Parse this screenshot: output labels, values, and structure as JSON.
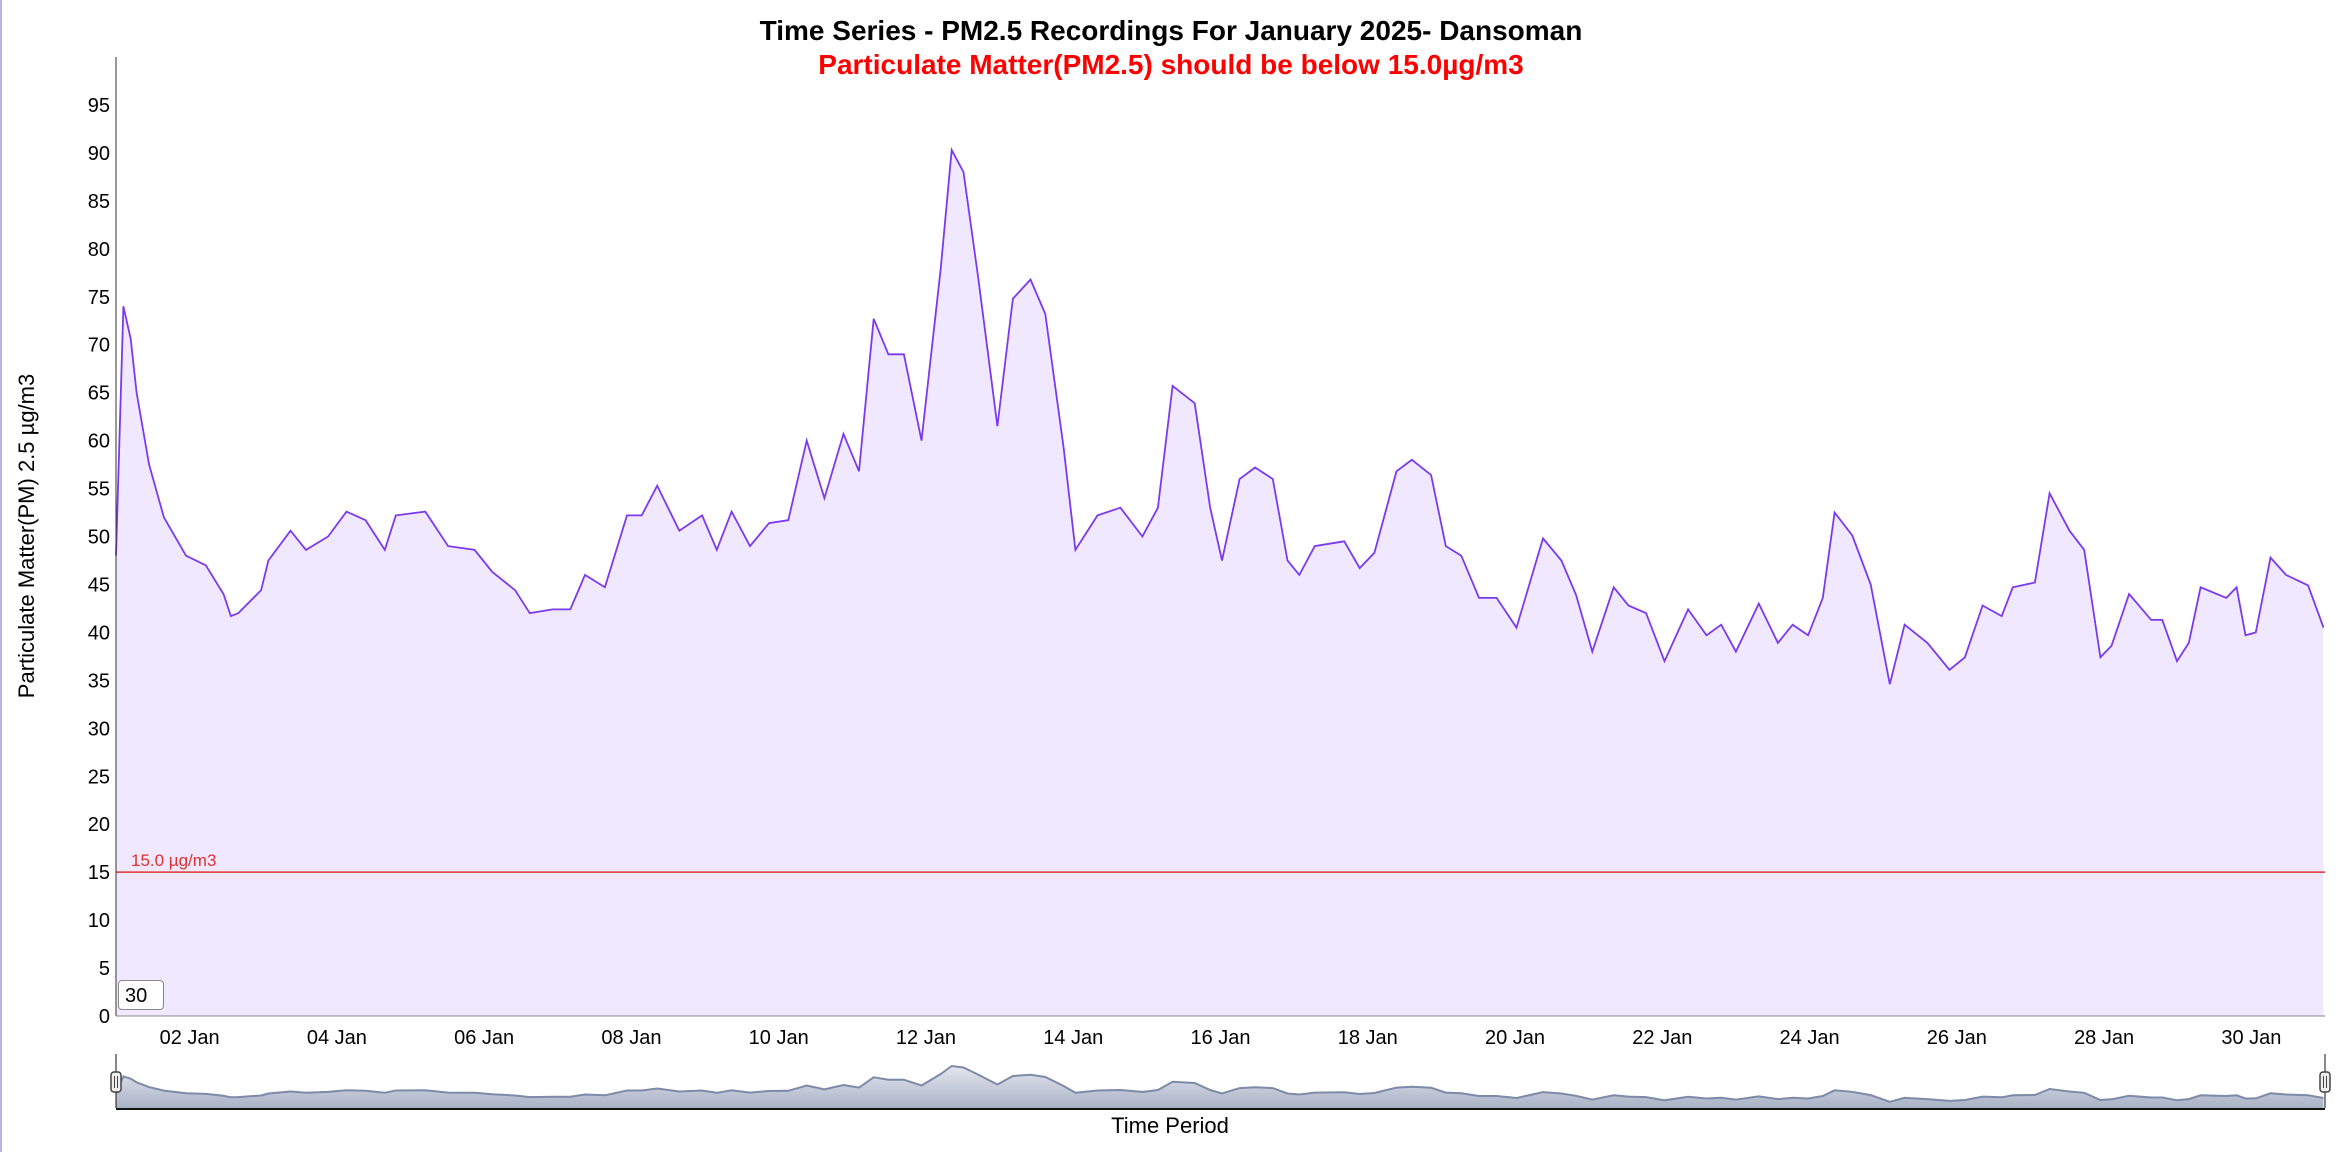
{
  "chart_data": {
    "type": "area",
    "title": "Time Series - PM2.5 Recordings For January 2025- Dansoman",
    "subtitle": "Particulate Matter(PM2.5) should be below 15.0µg/m3",
    "xlabel": "Time Period",
    "ylabel": "Particulate Matter(PM) 2.5 µg/m3",
    "x_unit": "days since 01 Jan 2025 00:00",
    "xlim": [
      0,
      30
    ],
    "ylim": [
      0,
      100
    ],
    "yticks": [
      0,
      5,
      10,
      15,
      20,
      25,
      30,
      35,
      40,
      45,
      50,
      55,
      60,
      65,
      70,
      75,
      80,
      85,
      90,
      95
    ],
    "xticks": [
      {
        "t": 1,
        "label": "02 Jan"
      },
      {
        "t": 3,
        "label": "04 Jan"
      },
      {
        "t": 5,
        "label": "06 Jan"
      },
      {
        "t": 7,
        "label": "08 Jan"
      },
      {
        "t": 9,
        "label": "10 Jan"
      },
      {
        "t": 11,
        "label": "12 Jan"
      },
      {
        "t": 13,
        "label": "14 Jan"
      },
      {
        "t": 15,
        "label": "16 Jan"
      },
      {
        "t": 17,
        "label": "18 Jan"
      },
      {
        "t": 19,
        "label": "20 Jan"
      },
      {
        "t": 21,
        "label": "22 Jan"
      },
      {
        "t": 23,
        "label": "24 Jan"
      },
      {
        "t": 25,
        "label": "26 Jan"
      },
      {
        "t": 27,
        "label": "28 Jan"
      },
      {
        "t": 29,
        "label": "30 Jan"
      }
    ],
    "threshold": {
      "value": 15.0,
      "label": "15.0 µg/m3",
      "color": "#e03030"
    },
    "series": [
      {
        "name": "PM2.5",
        "color": "#7c3aed",
        "fill": "#f0e8ff",
        "t": [
          0.0,
          0.1,
          0.2,
          0.28,
          0.45,
          0.65,
          0.95,
          1.22,
          1.46,
          1.56,
          1.66,
          1.97,
          2.07,
          2.37,
          2.58,
          2.88,
          3.13,
          3.39,
          3.65,
          3.8,
          4.2,
          4.51,
          4.87,
          5.11,
          5.42,
          5.62,
          5.93,
          6.17,
          6.37,
          6.64,
          6.94,
          7.14,
          7.35,
          7.65,
          7.96,
          8.16,
          8.36,
          8.61,
          8.87,
          9.13,
          9.38,
          9.62,
          9.88,
          10.09,
          10.29,
          10.49,
          10.7,
          10.94,
          11.2,
          11.35,
          11.51,
          11.71,
          11.97,
          12.18,
          12.42,
          12.62,
          12.87,
          13.03,
          13.33,
          13.64,
          13.94,
          14.15,
          14.35,
          14.65,
          14.86,
          15.02,
          15.26,
          15.47,
          15.71,
          15.91,
          16.07,
          16.28,
          16.68,
          16.89,
          17.09,
          17.39,
          17.6,
          17.86,
          18.06,
          18.27,
          18.51,
          18.75,
          19.02,
          19.38,
          19.63,
          19.83,
          20.05,
          20.34,
          20.54,
          20.78,
          21.03,
          21.35,
          21.6,
          21.8,
          22.0,
          22.31,
          22.57,
          22.77,
          22.98,
          23.18,
          23.34,
          23.58,
          23.83,
          24.09,
          24.29,
          24.6,
          24.9,
          25.11,
          25.35,
          25.61,
          25.76,
          26.06,
          26.26,
          26.53,
          26.73,
          26.95,
          27.1,
          27.34,
          27.64,
          27.79,
          27.99,
          28.15,
          28.31,
          28.66,
          28.8,
          28.92,
          29.06,
          29.26,
          29.47,
          29.77,
          29.98
        ],
        "values": [
          48,
          74,
          70.6,
          65,
          57.5,
          52,
          48,
          47,
          44,
          41.7,
          42,
          44.4,
          47.5,
          50.6,
          48.6,
          50,
          52.6,
          51.7,
          48.6,
          52.2,
          52.6,
          49,
          48.6,
          46.3,
          44.4,
          42,
          42.4,
          42.4,
          46,
          44.7,
          52.2,
          52.2,
          55.3,
          50.6,
          52.2,
          48.6,
          52.6,
          49,
          51.4,
          51.7,
          60,
          54,
          60.7,
          56.8,
          72.7,
          69,
          69,
          60,
          77.9,
          90.3,
          88,
          77,
          61.5,
          74.8,
          76.8,
          73.2,
          59.2,
          48.6,
          52.2,
          53,
          50,
          53,
          65.7,
          63.9,
          53,
          47.5,
          56,
          57.2,
          56,
          47.5,
          46,
          49,
          49.5,
          46.7,
          48.3,
          56.8,
          58,
          56.4,
          49,
          48,
          43.6,
          43.6,
          40.5,
          49.8,
          47.5,
          43.9,
          38,
          44.7,
          42.8,
          42,
          37,
          42.4,
          39.7,
          40.8,
          38,
          43,
          38.9,
          40.8,
          39.7,
          43.6,
          52.5,
          50.1,
          45,
          34.6,
          40.8,
          38.9,
          36.1,
          37.4,
          42.8,
          41.7,
          44.7,
          45.2,
          54.5,
          50.6,
          48.6,
          37.4,
          38.6,
          44,
          41.3,
          41.3,
          37,
          38.9,
          44.7,
          43.6,
          44.7,
          39.7,
          40,
          47.8,
          46,
          44.9,
          40.5
        ]
      }
    ]
  },
  "controls": {
    "range_input_value": "30"
  }
}
